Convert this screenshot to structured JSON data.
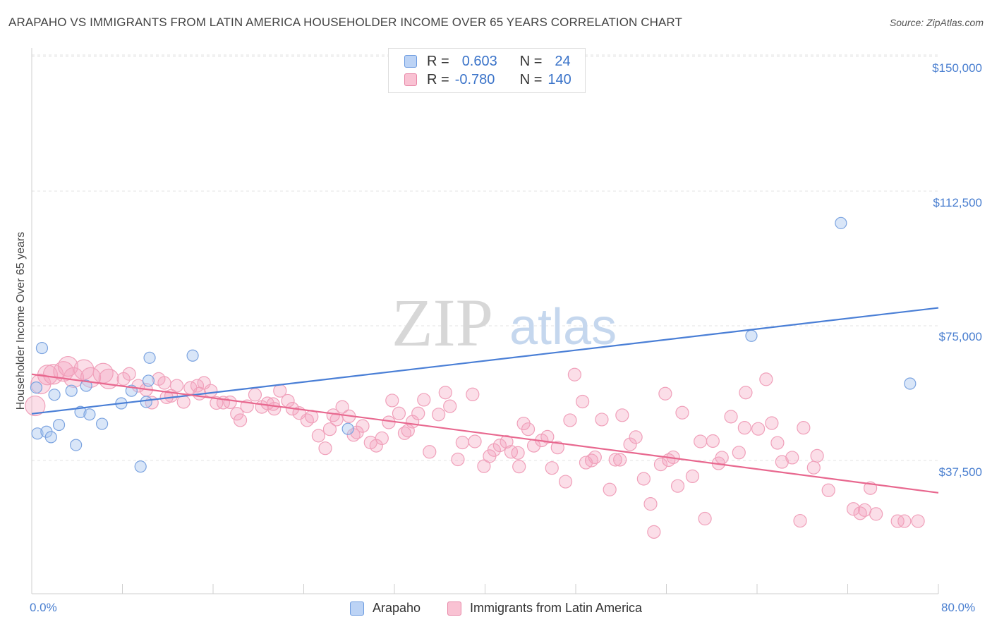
{
  "title": "ARAPAHO VS IMMIGRANTS FROM LATIN AMERICA HOUSEHOLDER INCOME OVER 65 YEARS CORRELATION CHART",
  "source": "Source: ZipAtlas.com",
  "watermark": {
    "zip": "ZIP",
    "atlas": "atlas"
  },
  "legend_top": [
    {
      "r_label": "R =",
      "r_value": "0.603",
      "n_label": "N =",
      "n_value": "24",
      "color": "#6d9be0"
    },
    {
      "r_label": "R =",
      "r_value": "-0.780",
      "n_label": "N =",
      "n_value": "140",
      "color": "#e888a8"
    }
  ],
  "colors": {
    "arapaho": "#4a7fd6",
    "immigrants": "#e8688f",
    "axis_text": "#4a7fd0"
  },
  "chart_data": {
    "type": "scatter",
    "title": "ARAPAHO VS IMMIGRANTS FROM LATIN AMERICA HOUSEHOLDER INCOME OVER 65 YEARS CORRELATION CHART",
    "xlabel": "",
    "ylabel": "Householder Income Over 65 years",
    "xlim": [
      0,
      80
    ],
    "ylim": [
      0,
      157000
    ],
    "x_tick_labels": [
      "0.0%",
      "80.0%"
    ],
    "y_ticks": [
      37500,
      75000,
      112500,
      150000
    ],
    "y_tick_labels": [
      "$37,500",
      "$75,000",
      "$112,500",
      "$150,000"
    ],
    "grid": true,
    "legend_position": "bottom",
    "series": [
      {
        "name": "Arapaho",
        "color": "#4a7fd6",
        "trend": {
          "x": [
            0,
            80
          ],
          "y": [
            50500,
            80000
          ]
        },
        "points": [
          [
            0.4,
            57800
          ],
          [
            0.5,
            45000
          ],
          [
            0.9,
            68800
          ],
          [
            1.3,
            45500
          ],
          [
            1.7,
            44000
          ],
          [
            2.0,
            55800
          ],
          [
            2.4,
            47400
          ],
          [
            3.5,
            56900
          ],
          [
            3.9,
            41800
          ],
          [
            4.3,
            51000
          ],
          [
            4.8,
            58300
          ],
          [
            5.1,
            50300
          ],
          [
            6.2,
            47700
          ],
          [
            7.9,
            53400
          ],
          [
            8.8,
            56900
          ],
          [
            9.6,
            35800
          ],
          [
            10.1,
            53800
          ],
          [
            10.3,
            59700
          ],
          [
            10.4,
            66100
          ],
          [
            14.2,
            66700
          ],
          [
            27.9,
            46300
          ],
          [
            63.5,
            72200
          ],
          [
            71.4,
            103600
          ],
          [
            77.5,
            58900
          ]
        ]
      },
      {
        "name": "Immigrants from Latin America",
        "color": "#e8688f",
        "trend": {
          "x": [
            0,
            80
          ],
          "y": [
            61500,
            28500
          ]
        },
        "points": [
          [
            0.3,
            52700
          ],
          [
            0.8,
            58800
          ],
          [
            1.4,
            61300
          ],
          [
            1.9,
            61500
          ],
          [
            2.8,
            62300
          ],
          [
            3.2,
            63700
          ],
          [
            3.7,
            60600
          ],
          [
            4.6,
            62800
          ],
          [
            5.2,
            60600
          ],
          [
            6.3,
            61800
          ],
          [
            6.8,
            60200
          ],
          [
            8.1,
            60200
          ],
          [
            8.6,
            61600
          ],
          [
            9.4,
            58300
          ],
          [
            10.1,
            57200
          ],
          [
            10.6,
            53600
          ],
          [
            11.2,
            60200
          ],
          [
            11.7,
            59100
          ],
          [
            12.3,
            55500
          ],
          [
            12.8,
            58300
          ],
          [
            13.4,
            53800
          ],
          [
            14.0,
            57700
          ],
          [
            14.6,
            58300
          ],
          [
            15.2,
            59100
          ],
          [
            15.8,
            56900
          ],
          [
            16.3,
            53500
          ],
          [
            16.9,
            53600
          ],
          [
            17.5,
            53700
          ],
          [
            18.1,
            50500
          ],
          [
            18.4,
            48700
          ],
          [
            19.0,
            52600
          ],
          [
            19.7,
            55800
          ],
          [
            20.3,
            52400
          ],
          [
            20.8,
            53400
          ],
          [
            21.4,
            51900
          ],
          [
            21.9,
            56900
          ],
          [
            22.6,
            54100
          ],
          [
            23.0,
            51900
          ],
          [
            23.6,
            50700
          ],
          [
            24.3,
            48700
          ],
          [
            24.7,
            49700
          ],
          [
            25.3,
            44400
          ],
          [
            25.9,
            40900
          ],
          [
            26.3,
            46200
          ],
          [
            26.9,
            48900
          ],
          [
            27.4,
            52400
          ],
          [
            28.0,
            49800
          ],
          [
            28.4,
            44600
          ],
          [
            28.7,
            45300
          ],
          [
            29.2,
            47100
          ],
          [
            29.9,
            42500
          ],
          [
            30.4,
            41600
          ],
          [
            30.9,
            43700
          ],
          [
            31.5,
            48100
          ],
          [
            31.8,
            54200
          ],
          [
            32.4,
            50600
          ],
          [
            32.9,
            45100
          ],
          [
            33.6,
            48300
          ],
          [
            34.1,
            50600
          ],
          [
            34.6,
            54400
          ],
          [
            35.1,
            39900
          ],
          [
            35.9,
            50300
          ],
          [
            36.5,
            56400
          ],
          [
            36.9,
            52600
          ],
          [
            37.6,
            37800
          ],
          [
            38.0,
            42500
          ],
          [
            38.9,
            55900
          ],
          [
            39.1,
            42800
          ],
          [
            39.9,
            35900
          ],
          [
            40.4,
            38700
          ],
          [
            40.8,
            40400
          ],
          [
            41.3,
            41700
          ],
          [
            41.9,
            42700
          ],
          [
            42.3,
            39900
          ],
          [
            42.9,
            39600
          ],
          [
            43.4,
            47800
          ],
          [
            43.8,
            46200
          ],
          [
            44.3,
            41600
          ],
          [
            45.0,
            43100
          ],
          [
            45.5,
            44100
          ],
          [
            45.9,
            35400
          ],
          [
            46.4,
            41100
          ],
          [
            47.1,
            31600
          ],
          [
            47.5,
            48700
          ],
          [
            47.9,
            61400
          ],
          [
            48.6,
            53900
          ],
          [
            49.4,
            37500
          ],
          [
            49.7,
            38400
          ],
          [
            50.3,
            48900
          ],
          [
            51.0,
            29400
          ],
          [
            51.5,
            37700
          ],
          [
            51.9,
            37700
          ],
          [
            52.1,
            50100
          ],
          [
            52.8,
            42000
          ],
          [
            53.3,
            44000
          ],
          [
            54.0,
            32400
          ],
          [
            54.6,
            25400
          ],
          [
            54.9,
            17600
          ],
          [
            55.5,
            36400
          ],
          [
            55.9,
            56100
          ],
          [
            56.6,
            38400
          ],
          [
            57.0,
            30400
          ],
          [
            57.4,
            50800
          ],
          [
            58.3,
            33100
          ],
          [
            59.0,
            42800
          ],
          [
            59.4,
            21300
          ],
          [
            60.1,
            42900
          ],
          [
            60.6,
            36700
          ],
          [
            60.9,
            38300
          ],
          [
            61.7,
            49700
          ],
          [
            62.4,
            39700
          ],
          [
            63.0,
            56400
          ],
          [
            64.1,
            46300
          ],
          [
            64.8,
            60100
          ],
          [
            65.3,
            47900
          ],
          [
            65.8,
            42400
          ],
          [
            66.2,
            37100
          ],
          [
            67.1,
            38300
          ],
          [
            67.8,
            20700
          ],
          [
            68.1,
            46600
          ],
          [
            69.0,
            35500
          ],
          [
            69.3,
            38800
          ],
          [
            70.3,
            29200
          ],
          [
            72.5,
            24000
          ],
          [
            73.1,
            22800
          ],
          [
            73.5,
            23700
          ],
          [
            74.0,
            29800
          ],
          [
            74.5,
            22600
          ],
          [
            76.4,
            20600
          ],
          [
            77.0,
            20600
          ],
          [
            78.2,
            20600
          ],
          [
            56.2,
            37600
          ],
          [
            33.2,
            45800
          ],
          [
            26.6,
            50100
          ],
          [
            43.0,
            35800
          ],
          [
            62.9,
            46600
          ],
          [
            48.9,
            36900
          ],
          [
            21.3,
            53200
          ],
          [
            14.8,
            56100
          ],
          [
            11.9,
            55100
          ]
        ]
      }
    ]
  },
  "legend_bottom": [
    {
      "label": "Arapaho"
    },
    {
      "label": "Immigrants from Latin America"
    }
  ]
}
